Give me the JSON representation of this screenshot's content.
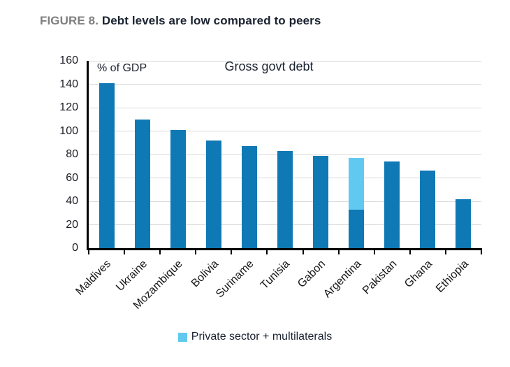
{
  "figure": {
    "label": "FIGURE 8.",
    "title": "Debt levels are low compared to peers"
  },
  "chart_data": {
    "type": "bar",
    "stacked": true,
    "title": "Gross govt debt",
    "unit_label": "% of GDP",
    "categories": [
      "Maldives",
      "Ukraine",
      "Mozambique",
      "Bolivia",
      "Suriname",
      "Tunisia",
      "Gabon",
      "Argentina",
      "Pakistan",
      "Ghana",
      "Ethiopia"
    ],
    "series": [
      {
        "name": "Gross govt debt",
        "color": "#0f79b5",
        "values": [
          141,
          110,
          101,
          92,
          87,
          83,
          79,
          33,
          74,
          66,
          42
        ]
      },
      {
        "name": "Private sector + multilaterals",
        "color": "#61c9f0",
        "values": [
          0,
          0,
          0,
          0,
          0,
          0,
          0,
          44,
          0,
          0,
          0
        ]
      }
    ],
    "ylim": [
      0,
      160
    ],
    "yticks": [
      0,
      20,
      40,
      60,
      80,
      100,
      120,
      140,
      160
    ],
    "grid": "horizontal",
    "legend": {
      "position": "bottom",
      "entries": [
        {
          "label": "Private sector + multilaterals",
          "color": "#61c9f0"
        }
      ]
    }
  },
  "colors": {
    "bar_primary": "#0f79b5",
    "bar_secondary": "#61c9f0",
    "gridline": "#d9d9d9",
    "axis": "#000000",
    "title_label": "#7f7f7f",
    "title_text": "#1a2230"
  }
}
